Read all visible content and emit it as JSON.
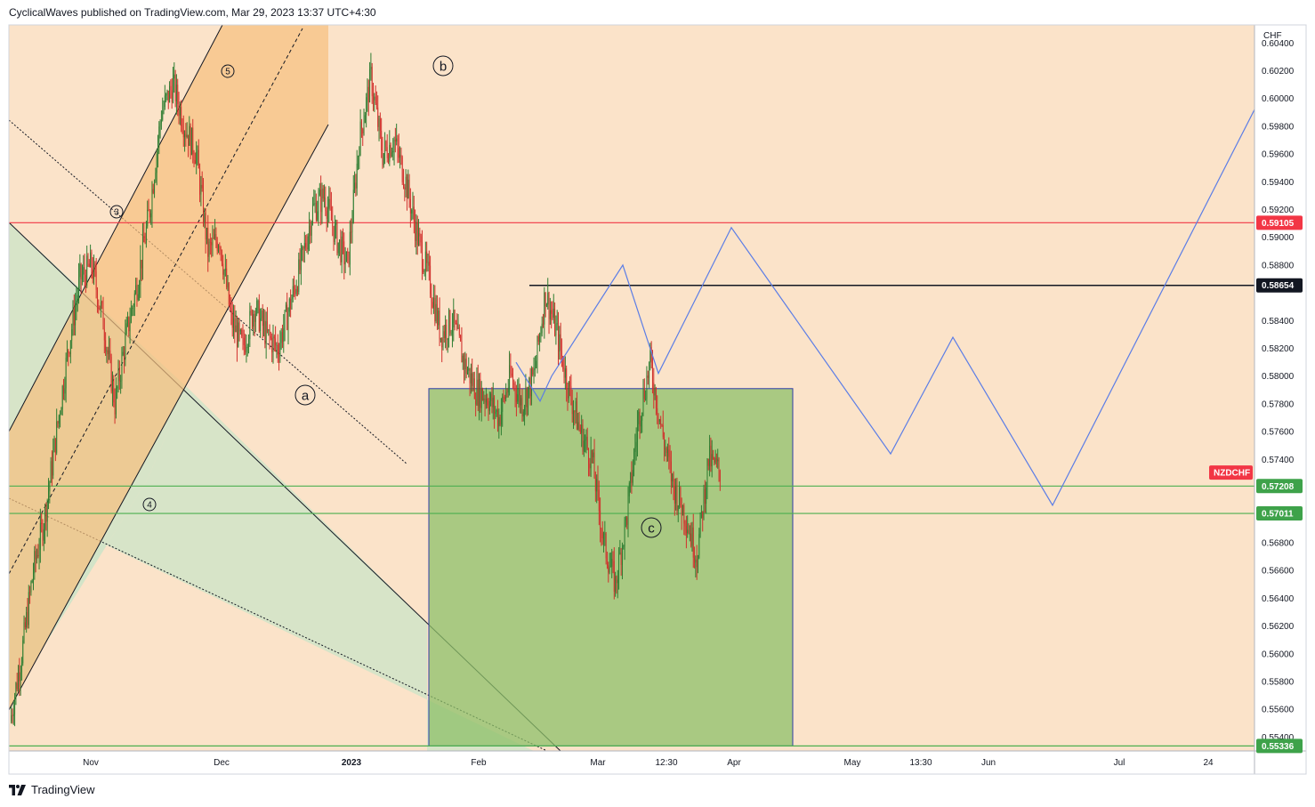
{
  "header": {
    "publisher_text": "CyclicalWaves published on TradingView.com, Mar 29, 2023 13:37 UTC+4:30"
  },
  "footer": {
    "brand": "TradingView"
  },
  "colors": {
    "background": "#fbe3c9",
    "channel_fill": "#f7bf7e",
    "wedge_fill": "#d3e3c8",
    "target_box_fill": "#8dc06a",
    "target_box_border": "#2d3ca8",
    "red_line": "#f23645",
    "green_line": "#4caf50",
    "projection_line": "#5b7de6",
    "bull_candle": "#2e7d32",
    "bear_candle": "#d1302c",
    "badge_green": "#3ea24a",
    "badge_red": "#f23645",
    "badge_black": "#131722"
  },
  "chart_data": {
    "type": "candlestick",
    "symbol": "NZDCHF",
    "currency": "CHF",
    "ylim": [
      0.553,
      0.6053
    ],
    "price_ticks": [
      "0.60400",
      "0.60200",
      "0.60000",
      "0.59800",
      "0.59600",
      "0.59400",
      "0.59200",
      "0.59000",
      "0.58800",
      "0.58600",
      "0.58400",
      "0.58200",
      "0.58000",
      "0.57800",
      "0.57600",
      "0.57400",
      "0.57200",
      "0.57000",
      "0.56800",
      "0.56600",
      "0.56400",
      "0.56200",
      "0.56000",
      "0.55800",
      "0.55600",
      "0.55400"
    ],
    "time_labels": [
      "Nov",
      "Dec",
      "2023",
      "Feb",
      "Mar",
      "12:30",
      "Apr",
      "May",
      "13:30",
      "Jun",
      "Jul",
      "24"
    ],
    "horizontal_levels": [
      {
        "price": 0.59105,
        "label": "0.59105",
        "color": "red"
      },
      {
        "price": 0.58654,
        "label": "0.58654",
        "color": "black"
      },
      {
        "price": 0.57208,
        "label": "0.57208",
        "color": "green"
      },
      {
        "price": 0.57011,
        "label": "0.57011",
        "color": "green"
      },
      {
        "price": 0.55336,
        "label": "0.55336",
        "color": "green"
      }
    ],
    "symbol_badge": {
      "label": "NZDCHF",
      "price": 0.57305
    },
    "target_box": {
      "price_top": 0.5791,
      "price_bottom": 0.55336
    },
    "wave_labels": [
      "5",
      "3",
      "4",
      "b",
      "a",
      "c"
    ],
    "projection_path_prices": [
      0.581,
      0.5782,
      0.58,
      0.588,
      0.5802,
      0.5907,
      0.5744,
      0.5828,
      0.5707,
      0.5992
    ],
    "price_path": [
      0.5551,
      0.56,
      0.566,
      0.57,
      0.576,
      0.582,
      0.587,
      0.588,
      0.584,
      0.578,
      0.583,
      0.587,
      0.592,
      0.599,
      0.601,
      0.598,
      0.596,
      0.589,
      0.59,
      0.584,
      0.582,
      0.585,
      0.583,
      0.582,
      0.585,
      0.588,
      0.592,
      0.593,
      0.59,
      0.588,
      0.597,
      0.6015,
      0.596,
      0.597,
      0.594,
      0.59,
      0.587,
      0.583,
      0.584,
      0.581,
      0.579,
      0.5785,
      0.577,
      0.58,
      0.578,
      0.58,
      0.586,
      0.583,
      0.579,
      0.576,
      0.574,
      0.568,
      0.565,
      0.57,
      0.577,
      0.581,
      0.576,
      0.572,
      0.57,
      0.567,
      0.574,
      0.5731
    ]
  }
}
